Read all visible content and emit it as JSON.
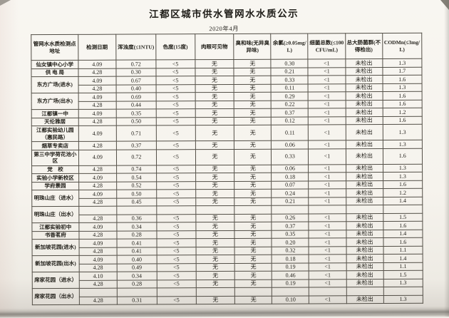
{
  "title": "江都区城市供水管网水水质公示",
  "subtitle": "2020年4月",
  "table": {
    "columns": [
      "管网水水质检测点地址",
      "检测日期",
      "浑浊度(≤1NTU)",
      "色度(15度)",
      "肉眼可见物",
      "臭和味(无异臭异味)",
      "余氯(≥0.05mg/L)",
      "细菌总数(≤100CFU/mL)",
      "总大肠菌群(不得检出)",
      "CODMn(≤3mg/L)"
    ],
    "rows": [
      {
        "address": "仙女镇中心小学",
        "cells": [
          "4.09",
          "0.72",
          "<5",
          "无",
          "无",
          "0.30",
          "<1",
          "未检出",
          "1.3"
        ]
      },
      {
        "address": "供 电 局",
        "cells": [
          "4.28",
          "0.30",
          "<5",
          "无",
          "无",
          "0.21",
          "<1",
          "未检出",
          "1.7"
        ]
      },
      {
        "address": "东方广场(进水)",
        "span": 2,
        "cells": [
          "4.09",
          "0.67",
          "<5",
          "无",
          "无",
          "0.33",
          "<1",
          "未检出",
          "1.6"
        ]
      },
      {
        "address": null,
        "cells": [
          "4.28",
          "0.40",
          "<5",
          "无",
          "无",
          "0.11",
          "<1",
          "未检出",
          "1.3"
        ]
      },
      {
        "address": "东方广场(出水)",
        "span": 2,
        "cells": [
          "4.09",
          "0.69",
          "<5",
          "无",
          "无",
          "0.29",
          "<1",
          "未检出",
          "1.6"
        ]
      },
      {
        "address": null,
        "cells": [
          "4.28",
          "0.44",
          "<5",
          "无",
          "无",
          "0.22",
          "<1",
          "未检出",
          "1.6"
        ]
      },
      {
        "address": "江都镇一中",
        "cells": [
          "4.09",
          "0.35",
          "<5",
          "无",
          "无",
          "0.37",
          "<1",
          "未检出",
          "1.2"
        ]
      },
      {
        "address": "天伦雅居",
        "cells": [
          "4.28",
          "0.50",
          "<5",
          "无",
          "无",
          "0.12",
          "<1",
          "未检出",
          "1.6"
        ]
      },
      {
        "address": "江都实验幼儿园（惠民路）",
        "tall": true,
        "cells": [
          "4.09",
          "0.71",
          "<5",
          "无",
          "无",
          "0.11",
          "<1",
          "未检出",
          "1.3"
        ]
      },
      {
        "address": "烟草专卖店",
        "cells": [
          "4.28",
          "0.37",
          "<5",
          "无",
          "无",
          "0.06",
          "<1",
          "未检出",
          "1.3"
        ]
      },
      {
        "address": "第三中学荷花池小区",
        "tall": true,
        "cells": [
          "4.09",
          "0.72",
          "<5",
          "无",
          "无",
          "0.33",
          "<1",
          "未检出",
          "1.6"
        ]
      },
      {
        "address": "党　校",
        "cells": [
          "4.28",
          "0.74",
          "<5",
          "无",
          "无",
          "0.06",
          "<1",
          "未检出",
          "1.3"
        ]
      },
      {
        "address": "实验小学新校区",
        "cells": [
          "4.09",
          "0.54",
          "<5",
          "无",
          "无",
          "0.18",
          "<1",
          "未检出",
          "1.3"
        ]
      },
      {
        "address": "学府景园",
        "cells": [
          "4.28",
          "0.52",
          "<5",
          "无",
          "无",
          "0.07",
          "<1",
          "未检出",
          "1.6"
        ]
      },
      {
        "address": "明珠山庄（进水）",
        "span": 2,
        "cells": [
          "4.09",
          "0.50",
          "<5",
          "无",
          "无",
          "0.24",
          "<1",
          "未检出",
          "1.2"
        ]
      },
      {
        "address": null,
        "cells": [
          "4.28",
          "0.45",
          "<5",
          "无",
          "无",
          "0.21",
          "<1",
          "未检出",
          "1.4"
        ]
      },
      {
        "address": "明珠山庄（出水）",
        "span": 2,
        "cells": [
          "",
          "",
          "",
          "",
          "",
          "",
          "",
          "",
          ""
        ]
      },
      {
        "address": null,
        "cells": [
          "4.28",
          "0.36",
          "<5",
          "无",
          "无",
          "0.26",
          "<1",
          "未检出",
          "1.5"
        ]
      },
      {
        "address": "江都实验初中",
        "cells": [
          "4.09",
          "0.34",
          "<5",
          "无",
          "无",
          "0.37",
          "<1",
          "未检出",
          "1.6"
        ]
      },
      {
        "address": "书香茗府",
        "cells": [
          "4.28",
          "0.28",
          "<5",
          "无",
          "无",
          "0.35",
          "<1",
          "未检出",
          "1.4"
        ]
      },
      {
        "address": "新加坡花园(进水)",
        "span": 2,
        "cells": [
          "4.09",
          "0.41",
          "<5",
          "无",
          "无",
          "0.20",
          "<1",
          "未检出",
          "1.6"
        ]
      },
      {
        "address": null,
        "cells": [
          "4.28",
          "0.41",
          "<5",
          "无",
          "无",
          "0.32",
          "<1",
          "未检出",
          "1.1"
        ]
      },
      {
        "address": "新加坡花园(出水)",
        "span": 2,
        "cells": [
          "4.09",
          "0.40",
          "<5",
          "无",
          "无",
          "0.18",
          "<1",
          "未检出",
          "1.4"
        ]
      },
      {
        "address": null,
        "cells": [
          "4.28",
          "0.49",
          "<5",
          "无",
          "无",
          "0.19",
          "<1",
          "未检出",
          "1.1"
        ]
      },
      {
        "address": "席家花园（进水）",
        "span": 2,
        "cells": [
          "4.10",
          "0.34",
          "<5",
          "无",
          "无",
          "0.46",
          "<1",
          "未检出",
          "1.5"
        ]
      },
      {
        "address": null,
        "cells": [
          "4.28",
          "0.28",
          "<5",
          "无",
          "无",
          "0.19",
          "<1",
          "未检出",
          "1.3"
        ]
      },
      {
        "address": "席家花园（出水）",
        "span": 2,
        "cells": [
          "",
          "",
          "",
          "",
          "",
          "",
          "",
          "",
          ""
        ]
      },
      {
        "address": null,
        "cells": [
          "4.28",
          "0.31",
          "<5",
          "无",
          "无",
          "0.10",
          "<1",
          "未检出",
          "1.3"
        ]
      }
    ]
  }
}
